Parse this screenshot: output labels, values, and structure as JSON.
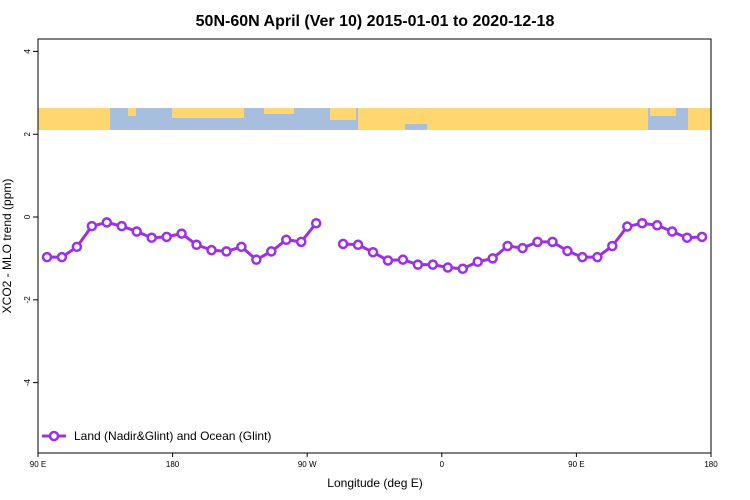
{
  "chart_data": {
    "type": "line",
    "title": "50N-60N April (Ver 10)   2015-01-01 to 2020-12-18",
    "xlabel": "Longitude (deg E)",
    "ylabel": "XCO2 - MLO trend (ppm)",
    "xlim": [
      90,
      540
    ],
    "ylim": [
      -5.7,
      4.3
    ],
    "x_ticks": [
      {
        "value": 90,
        "label": "90 E"
      },
      {
        "value": 180,
        "label": "180"
      },
      {
        "value": 270,
        "label": "90 W"
      },
      {
        "value": 360,
        "label": "0"
      },
      {
        "value": 450,
        "label": "90 E"
      },
      {
        "value": 540,
        "label": "180"
      }
    ],
    "y_ticks": [
      4,
      2,
      0,
      -2,
      -4
    ],
    "grid": false,
    "legend_position": "bottom-left",
    "map_strip": {
      "y_range": [
        2.05,
        2.6
      ],
      "land_color": "#FFD670",
      "ocean_color": "#A8BEDF"
    },
    "series": [
      {
        "name": "Land (Nadir&Glint) and Ocean (Glint)",
        "color": "#9B30E8",
        "segments": [
          [
            [
              96,
              -0.97
            ],
            [
              106,
              -0.97
            ],
            [
              116,
              -0.72
            ],
            [
              126,
              -0.22
            ],
            [
              136,
              -0.13
            ],
            [
              146,
              -0.22
            ],
            [
              156,
              -0.35
            ],
            [
              166,
              -0.5
            ],
            [
              176,
              -0.48
            ],
            [
              186,
              -0.4
            ],
            [
              196,
              -0.67
            ],
            [
              206,
              -0.8
            ],
            [
              216,
              -0.83
            ],
            [
              226,
              -0.72
            ],
            [
              236,
              -1.03
            ],
            [
              246,
              -0.83
            ],
            [
              256,
              -0.55
            ],
            [
              266,
              -0.6
            ],
            [
              276,
              -0.15
            ]
          ],
          [
            [
              294,
              -0.65
            ],
            [
              304,
              -0.67
            ],
            [
              314,
              -0.85
            ],
            [
              324,
              -1.05
            ],
            [
              334,
              -1.03
            ],
            [
              344,
              -1.15
            ],
            [
              354,
              -1.15
            ],
            [
              364,
              -1.22
            ],
            [
              374,
              -1.25
            ],
            [
              384,
              -1.08
            ],
            [
              394,
              -1.0
            ],
            [
              404,
              -0.7
            ],
            [
              414,
              -0.75
            ],
            [
              424,
              -0.6
            ],
            [
              434,
              -0.6
            ],
            [
              444,
              -0.82
            ],
            [
              454,
              -0.97
            ],
            [
              464,
              -0.97
            ],
            [
              474,
              -0.7
            ],
            [
              484,
              -0.23
            ],
            [
              494,
              -0.15
            ],
            [
              504,
              -0.2
            ],
            [
              514,
              -0.35
            ],
            [
              524,
              -0.5
            ],
            [
              534,
              -0.48
            ]
          ]
        ]
      }
    ]
  }
}
